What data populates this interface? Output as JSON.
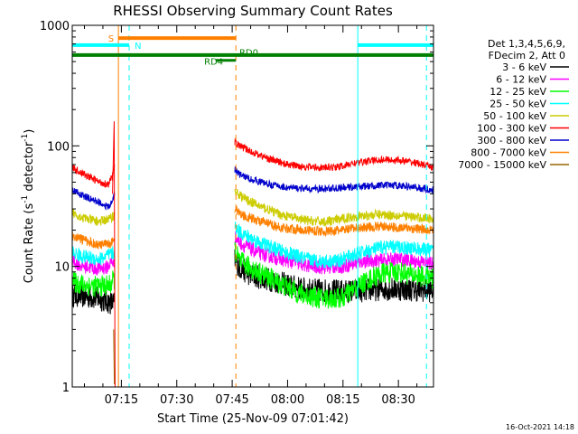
{
  "chart_data": {
    "type": "line",
    "title": "RHESSI Observing Summary Count Rates",
    "xlabel": "Start Time (25-Nov-09 07:01:42)",
    "ylabel_main": "Count Rate (s",
    "ylabel_sup1": "-1",
    "ylabel_mid": " detector",
    "ylabel_sup2": "-1",
    "ylabel_end": ")",
    "y_scale": "log",
    "ylim": [
      1,
      1000
    ],
    "x_axis_minutes_from_0700": [
      1.7,
      99.5
    ],
    "x_ticks": [
      {
        "label": "07:15",
        "minute": 15
      },
      {
        "label": "07:30",
        "minute": 30
      },
      {
        "label": "07:45",
        "minute": 45
      },
      {
        "label": "08:00",
        "minute": 60
      },
      {
        "label": "08:15",
        "minute": 75
      },
      {
        "label": "08:30",
        "minute": 90
      }
    ],
    "y_ticks": [
      {
        "label": "1",
        "value": 1
      },
      {
        "label": "10",
        "value": 10
      },
      {
        "label": "100",
        "value": 100
      },
      {
        "label": "1000",
        "value": 1000
      }
    ],
    "legend": {
      "placement": "right",
      "header": [
        "Det 1,3,4,5,6,9,",
        "FDecim 2, Att 0"
      ],
      "entries": [
        {
          "label": "3 - 6 keV",
          "color": "#000000"
        },
        {
          "label": "6 - 12 keV",
          "color": "#ff00ff"
        },
        {
          "label": "12 - 25 keV",
          "color": "#00ff00"
        },
        {
          "label": "25 - 50 keV",
          "color": "#00ffff"
        },
        {
          "label": "50 - 100 keV",
          "color": "#cccc00"
        },
        {
          "label": "100 - 300 keV",
          "color": "#ff0000"
        },
        {
          "label": "300 - 800 keV",
          "color": "#0000cc"
        },
        {
          "label": "800 - 7000 keV",
          "color": "#ff8000"
        },
        {
          "label": "7000 - 15000 keV",
          "color": "#996600"
        }
      ]
    },
    "data_gap_minutes": [
      13.2,
      45.7
    ],
    "series": [
      {
        "name": "3 - 6 keV",
        "color": "#000000",
        "noise": 0.1,
        "seg1": [
          [
            1.7,
            5.8
          ],
          [
            8,
            5.5
          ],
          [
            12,
            5.0
          ],
          [
            13.2,
            5.0
          ]
        ],
        "seg2": [
          [
            45.7,
            11.5
          ],
          [
            47,
            9.8
          ],
          [
            50,
            8.5
          ],
          [
            55,
            7.8
          ],
          [
            60,
            7.0
          ],
          [
            65,
            6.4
          ],
          [
            70,
            6.3
          ],
          [
            75,
            6.2
          ],
          [
            80,
            6.3
          ],
          [
            85,
            6.5
          ],
          [
            90,
            6.5
          ],
          [
            95,
            6.4
          ],
          [
            99.5,
            6.3
          ]
        ]
      },
      {
        "name": "6 - 12 keV",
        "color": "#ff00ff",
        "noise": 0.06,
        "seg1": [
          [
            1.7,
            11.2
          ],
          [
            4,
            10.2
          ],
          [
            8,
            9.6
          ],
          [
            11,
            9.8
          ],
          [
            12.5,
            11.0
          ],
          [
            13.2,
            10.5
          ]
        ],
        "seg2": [
          [
            45.7,
            17.5
          ],
          [
            48,
            15.0
          ],
          [
            52,
            13.0
          ],
          [
            58,
            11.5
          ],
          [
            65,
            10.2
          ],
          [
            70,
            9.8
          ],
          [
            75,
            10.0
          ],
          [
            80,
            11.0
          ],
          [
            85,
            11.2
          ],
          [
            90,
            11.5
          ],
          [
            95,
            11.0
          ],
          [
            99.5,
            10.5
          ]
        ]
      },
      {
        "name": "12 - 25 keV",
        "color": "#00ff00",
        "noise": 0.09,
        "seg1": [
          [
            1.7,
            7.5
          ],
          [
            5,
            7.0
          ],
          [
            9,
            6.8
          ],
          [
            12,
            7.0
          ],
          [
            13.2,
            8.0
          ]
        ],
        "seg2": [
          [
            45.7,
            13.5
          ],
          [
            47,
            11.0
          ],
          [
            52,
            9.0
          ],
          [
            58,
            7.2
          ],
          [
            63,
            6.0
          ],
          [
            68,
            5.5
          ],
          [
            72,
            5.4
          ],
          [
            75,
            5.5
          ],
          [
            78,
            6.5
          ],
          [
            82,
            7.8
          ],
          [
            86,
            8.8
          ],
          [
            90,
            9.0
          ],
          [
            94,
            8.5
          ],
          [
            99.5,
            8.0
          ]
        ]
      },
      {
        "name": "25 - 50 keV",
        "color": "#00ffff",
        "noise": 0.06,
        "seg1": [
          [
            1.7,
            13.0
          ],
          [
            5,
            12.0
          ],
          [
            9,
            11.5
          ],
          [
            12,
            12.5
          ],
          [
            13.2,
            13.0
          ]
        ],
        "seg2": [
          [
            45.7,
            21.0
          ],
          [
            48,
            18.5
          ],
          [
            52,
            16.0
          ],
          [
            58,
            13.5
          ],
          [
            65,
            11.5
          ],
          [
            70,
            11.0
          ],
          [
            74,
            11.2
          ],
          [
            78,
            12.5
          ],
          [
            82,
            13.5
          ],
          [
            86,
            14.5
          ],
          [
            90,
            14.5
          ],
          [
            95,
            14.0
          ],
          [
            99.5,
            13.5
          ]
        ]
      },
      {
        "name": "50 - 100 keV",
        "color": "#cccc00",
        "noise": 0.04,
        "seg1": [
          [
            1.7,
            28.0
          ],
          [
            5,
            25.0
          ],
          [
            9,
            23.5
          ],
          [
            12,
            25.0
          ],
          [
            13.2,
            27.0
          ]
        ],
        "seg2": [
          [
            45.7,
            42.0
          ],
          [
            48,
            37.0
          ],
          [
            52,
            32.0
          ],
          [
            58,
            27.0
          ],
          [
            65,
            24.0
          ],
          [
            70,
            23.5
          ],
          [
            74,
            24.5
          ],
          [
            78,
            26.0
          ],
          [
            85,
            27.0
          ],
          [
            90,
            26.5
          ],
          [
            95,
            25.5
          ],
          [
            99.5,
            25.0
          ]
        ]
      },
      {
        "name": "100 - 300 keV",
        "color": "#ff0000",
        "noise": 0.03,
        "seg1": [
          [
            1.7,
            66.0
          ],
          [
            5,
            58.0
          ],
          [
            9,
            50.0
          ],
          [
            11.5,
            48.0
          ],
          [
            12.5,
            55.0
          ],
          [
            13.2,
            70.0
          ]
        ],
        "seg2": [
          [
            45.7,
            108.0
          ],
          [
            47,
            100.0
          ],
          [
            50,
            90.0
          ],
          [
            55,
            78.0
          ],
          [
            60,
            70.0
          ],
          [
            65,
            67.0
          ],
          [
            70,
            66.0
          ],
          [
            74,
            67.0
          ],
          [
            78,
            72.0
          ],
          [
            82,
            75.0
          ],
          [
            86,
            77.0
          ],
          [
            90,
            76.0
          ],
          [
            95,
            72.0
          ],
          [
            99.5,
            66.0
          ]
        ]
      },
      {
        "name": "300 - 800 keV",
        "color": "#0000cc",
        "noise": 0.03,
        "seg1": [
          [
            1.7,
            43.0
          ],
          [
            5,
            38.0
          ],
          [
            9,
            34.0
          ],
          [
            11.5,
            31.0
          ],
          [
            12.5,
            34.0
          ],
          [
            13.2,
            42.0
          ]
        ],
        "seg2": [
          [
            45.7,
            64.0
          ],
          [
            47,
            58.0
          ],
          [
            50,
            53.0
          ],
          [
            55,
            48.0
          ],
          [
            60,
            45.0
          ],
          [
            65,
            44.0
          ],
          [
            70,
            44.0
          ],
          [
            75,
            45.0
          ],
          [
            80,
            46.0
          ],
          [
            85,
            47.0
          ],
          [
            90,
            47.0
          ],
          [
            95,
            45.0
          ],
          [
            99.5,
            43.0
          ]
        ]
      },
      {
        "name": "800 - 7000 keV",
        "color": "#ff8000",
        "noise": 0.04,
        "seg1": [
          [
            1.7,
            18.0
          ],
          [
            5,
            16.5
          ],
          [
            9,
            15.0
          ],
          [
            12,
            15.5
          ],
          [
            13.2,
            17.0
          ]
        ],
        "seg2": [
          [
            45.7,
            30.0
          ],
          [
            48,
            26.5
          ],
          [
            52,
            24.0
          ],
          [
            58,
            21.0
          ],
          [
            65,
            20.0
          ],
          [
            70,
            19.5
          ],
          [
            75,
            20.0
          ],
          [
            80,
            21.0
          ],
          [
            85,
            21.5
          ],
          [
            90,
            21.0
          ],
          [
            95,
            20.5
          ],
          [
            99.5,
            20.0
          ]
        ]
      }
    ],
    "spike": {
      "minute": 13.2,
      "peak": 160
    },
    "bars": [
      {
        "label": "S",
        "color": "#ff8000",
        "start": 14.2,
        "end": 46.0,
        "level": 783,
        "label_minute": 12.2
      },
      {
        "label": "N",
        "color": "#00ffff",
        "start": 1.7,
        "end": 17.1,
        "level": 686,
        "label_minute": 19.5
      },
      {
        "label": "N",
        "color": "#00ffff",
        "start": 79.0,
        "end": 99.5,
        "level": 686,
        "label_minute": null
      },
      {
        "label": "",
        "color": "#008000",
        "start": 1.7,
        "end": 99.5,
        "level": 567,
        "label_minute": null
      }
    ],
    "bar_labels_green": [
      {
        "label": "RD4",
        "minute": 40.0,
        "level": 495
      },
      {
        "label": "RD0",
        "minute": 49.5,
        "level": 590
      }
    ],
    "green_drop": {
      "start": 40.5,
      "end": 46.0,
      "level": 512
    },
    "vlines": [
      {
        "minute": 1.7,
        "color": "#00ffff",
        "style": "solid"
      },
      {
        "minute": 14.2,
        "color": "#ff8000",
        "style": "solid"
      },
      {
        "minute": 17.1,
        "color": "#00ffff",
        "style": "dashed"
      },
      {
        "minute": 46.0,
        "color": "#ff8000",
        "style": "dashed"
      },
      {
        "minute": 79.0,
        "color": "#00ffff",
        "style": "solid"
      },
      {
        "minute": 97.6,
        "color": "#00ffff",
        "style": "dashed"
      }
    ],
    "timestamp": "16-Oct-2021 14:18"
  }
}
